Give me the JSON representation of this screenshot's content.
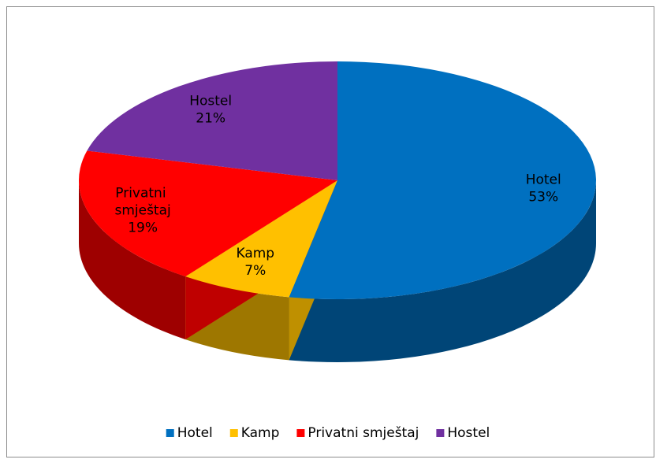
{
  "chart_data": {
    "type": "pie",
    "three_d": true,
    "categories": [
      "Hotel",
      "Kamp",
      "Privatni smještaj",
      "Hostel"
    ],
    "values": [
      53,
      7,
      19,
      21
    ],
    "value_labels": [
      "53%",
      "7%",
      "19%",
      "21%"
    ],
    "colors": [
      "#0070c0",
      "#ffc000",
      "#ff0000",
      "#7030a0"
    ],
    "legend": "bottom"
  }
}
